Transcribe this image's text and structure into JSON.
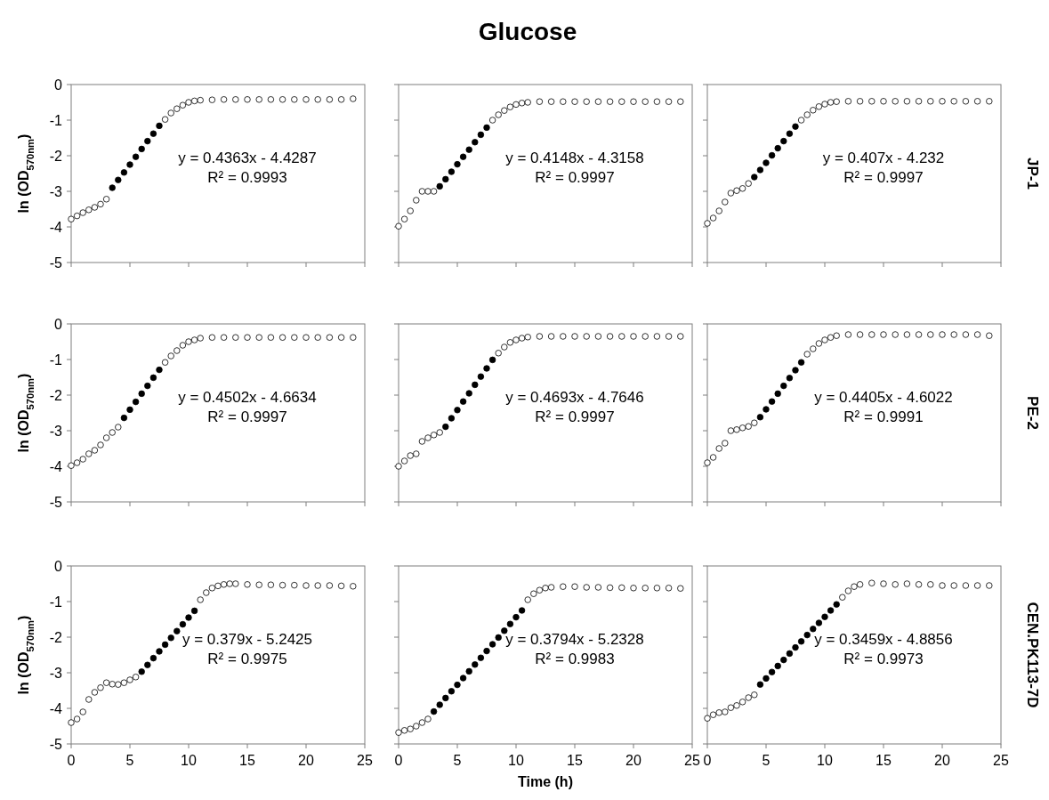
{
  "chart_data": [
    {
      "type": "scatter",
      "ylabel": "ln (OD$_{570nm}$)",
      "xlim": [
        0,
        25
      ],
      "xticks": [
        0,
        5,
        10,
        15,
        20,
        25
      ],
      "ylim": [
        -5,
        0
      ],
      "yticks": [
        0,
        -1,
        -2,
        -3,
        -4,
        -5
      ],
      "tick_labels": "y",
      "marker": "circle",
      "annotations": [
        "y = 0.4363x - 4.4287",
        "R² = 0.9993"
      ],
      "series": [
        {
          "color": "#ffffff",
          "x": [
            0,
            0.5,
            1,
            1.5,
            2,
            2.5,
            3,
            8,
            8.5,
            9,
            9.5,
            10,
            10.5,
            11,
            12,
            13,
            14,
            15,
            16,
            17,
            18,
            19,
            20,
            21,
            22,
            23,
            24
          ],
          "values": [
            -3.78,
            -3.69,
            -3.6,
            -3.52,
            -3.45,
            -3.36,
            -3.22,
            -0.98,
            -0.8,
            -0.68,
            -0.58,
            -0.5,
            -0.46,
            -0.44,
            -0.43,
            -0.42,
            -0.42,
            -0.42,
            -0.42,
            -0.42,
            -0.42,
            -0.42,
            -0.42,
            -0.42,
            -0.42,
            -0.42,
            -0.4
          ]
        },
        {
          "color": "#000000",
          "x": [
            3.5,
            4,
            4.5,
            5,
            5.5,
            6,
            6.5,
            7,
            7.5
          ],
          "values": [
            -2.9,
            -2.68,
            -2.47,
            -2.25,
            -2.03,
            -1.81,
            -1.59,
            -1.38,
            -1.16
          ]
        }
      ]
    },
    {
      "type": "scatter",
      "title": "Glucose",
      "xlim": [
        0,
        25
      ],
      "xticks": [
        0,
        5,
        10,
        15,
        20,
        25
      ],
      "ylim": [
        -5,
        0
      ],
      "yticks": [
        0,
        -1,
        -2,
        -3,
        -4,
        -5
      ],
      "tick_labels": false,
      "marker": "circle",
      "annotations": [
        "y = 0.4148x - 4.3158",
        "R² = 0.9997"
      ],
      "series": [
        {
          "color": "#ffffff",
          "x": [
            0,
            0.5,
            1,
            1.5,
            2,
            2.5,
            3,
            8,
            8.5,
            9,
            9.5,
            10,
            10.5,
            11,
            12,
            13,
            14,
            15,
            16,
            17,
            18,
            19,
            20,
            21,
            22,
            23,
            24
          ],
          "values": [
            -3.98,
            -3.78,
            -3.55,
            -3.25,
            -3.0,
            -3.0,
            -3.0,
            -1.0,
            -0.85,
            -0.73,
            -0.63,
            -0.56,
            -0.52,
            -0.5,
            -0.48,
            -0.48,
            -0.48,
            -0.48,
            -0.48,
            -0.48,
            -0.48,
            -0.48,
            -0.48,
            -0.48,
            -0.48,
            -0.48,
            -0.48
          ]
        },
        {
          "color": "#000000",
          "x": [
            3.5,
            4,
            4.5,
            5,
            5.5,
            6,
            6.5,
            7,
            7.5
          ],
          "values": [
            -2.86,
            -2.66,
            -2.45,
            -2.24,
            -2.03,
            -1.83,
            -1.62,
            -1.41,
            -1.21
          ]
        }
      ]
    },
    {
      "type": "scatter",
      "xlim": [
        0,
        25
      ],
      "xticks": [
        0,
        5,
        10,
        15,
        20,
        25
      ],
      "ylim": [
        -5,
        0
      ],
      "yticks": [
        0,
        -1,
        -2,
        -3,
        -4,
        -5
      ],
      "tick_labels": false,
      "marker": "circle",
      "annotations": [
        "y = 0.407x - 4.232",
        "R² = 0.9997",
        "JP-1"
      ],
      "series": [
        {
          "color": "#ffffff",
          "x": [
            0,
            0.5,
            1,
            1.5,
            2,
            2.5,
            3,
            3.5,
            8,
            8.5,
            9,
            9.5,
            10,
            10.5,
            11,
            12,
            13,
            14,
            15,
            16,
            17,
            18,
            19,
            20,
            21,
            22,
            23,
            24
          ],
          "values": [
            -3.9,
            -3.75,
            -3.55,
            -3.3,
            -3.05,
            -2.98,
            -2.92,
            -2.78,
            -1.0,
            -0.85,
            -0.72,
            -0.62,
            -0.55,
            -0.5,
            -0.48,
            -0.47,
            -0.47,
            -0.47,
            -0.47,
            -0.47,
            -0.47,
            -0.47,
            -0.47,
            -0.47,
            -0.47,
            -0.47,
            -0.47,
            -0.47
          ]
        },
        {
          "color": "#000000",
          "x": [
            4,
            4.5,
            5,
            5.5,
            6,
            6.5,
            7,
            7.5
          ],
          "values": [
            -2.6,
            -2.4,
            -2.2,
            -1.99,
            -1.79,
            -1.59,
            -1.38,
            -1.18
          ]
        }
      ]
    },
    {
      "type": "scatter",
      "ylabel": "ln (OD$_{570nm}$)",
      "xlim": [
        0,
        25
      ],
      "xticks": [
        0,
        5,
        10,
        15,
        20,
        25
      ],
      "ylim": [
        -5,
        0
      ],
      "yticks": [
        0,
        -1,
        -2,
        -3,
        -4,
        -5
      ],
      "tick_labels": "y",
      "marker": "circle",
      "annotations": [
        "y = 0.4502x - 4.6634",
        "R² = 0.9997"
      ],
      "series": [
        {
          "color": "#ffffff",
          "x": [
            0,
            0.5,
            1,
            1.5,
            2,
            2.5,
            3,
            3.5,
            4,
            8,
            8.5,
            9,
            9.5,
            10,
            10.5,
            11,
            12,
            13,
            14,
            15,
            16,
            17,
            18,
            19,
            20,
            21,
            22,
            23,
            24
          ],
          "values": [
            -3.98,
            -3.9,
            -3.8,
            -3.65,
            -3.55,
            -3.4,
            -3.2,
            -3.05,
            -2.9,
            -1.08,
            -0.9,
            -0.75,
            -0.6,
            -0.5,
            -0.45,
            -0.4,
            -0.38,
            -0.38,
            -0.38,
            -0.38,
            -0.38,
            -0.38,
            -0.38,
            -0.38,
            -0.38,
            -0.38,
            -0.38,
            -0.38,
            -0.38
          ]
        },
        {
          "color": "#000000",
          "x": [
            4.5,
            5,
            5.5,
            6,
            6.5,
            7,
            7.5
          ],
          "values": [
            -2.64,
            -2.41,
            -2.19,
            -1.96,
            -1.74,
            -1.51,
            -1.29
          ]
        }
      ]
    },
    {
      "type": "scatter",
      "xlim": [
        0,
        25
      ],
      "xticks": [
        0,
        5,
        10,
        15,
        20,
        25
      ],
      "ylim": [
        -5,
        0
      ],
      "yticks": [
        0,
        -1,
        -2,
        -3,
        -4,
        -5
      ],
      "tick_labels": false,
      "marker": "circle",
      "annotations": [
        "y = 0.4693x - 4.7646",
        "R² = 0.9997"
      ],
      "series": [
        {
          "color": "#ffffff",
          "x": [
            0,
            0.5,
            1,
            1.5,
            2,
            2.5,
            3,
            3.5,
            8.5,
            9,
            9.5,
            10,
            10.5,
            11,
            12,
            13,
            14,
            15,
            16,
            17,
            18,
            19,
            20,
            21,
            22,
            23,
            24
          ],
          "values": [
            -4.0,
            -3.85,
            -3.7,
            -3.65,
            -3.3,
            -3.2,
            -3.12,
            -3.05,
            -0.82,
            -0.65,
            -0.52,
            -0.45,
            -0.4,
            -0.37,
            -0.35,
            -0.35,
            -0.35,
            -0.35,
            -0.35,
            -0.35,
            -0.35,
            -0.35,
            -0.35,
            -0.35,
            -0.35,
            -0.35,
            -0.35
          ]
        },
        {
          "color": "#000000",
          "x": [
            4,
            4.5,
            5,
            5.5,
            6,
            6.5,
            7,
            7.5,
            8
          ],
          "values": [
            -2.89,
            -2.65,
            -2.42,
            -2.18,
            -1.95,
            -1.71,
            -1.48,
            -1.25,
            -1.01
          ]
        }
      ]
    },
    {
      "type": "scatter",
      "xlim": [
        0,
        25
      ],
      "xticks": [
        0,
        5,
        10,
        15,
        20,
        25
      ],
      "ylim": [
        -5,
        0
      ],
      "yticks": [
        0,
        -1,
        -2,
        -3,
        -4,
        -5
      ],
      "tick_labels": false,
      "marker": "circle",
      "annotations": [
        "y = 0.4405x - 4.6022",
        "R² = 0.9991",
        "PE-2"
      ],
      "series": [
        {
          "color": "#ffffff",
          "x": [
            0,
            0.5,
            1,
            1.5,
            2,
            2.5,
            3,
            3.5,
            4,
            8.5,
            9,
            9.5,
            10,
            10.5,
            11,
            12,
            13,
            14,
            15,
            16,
            17,
            18,
            19,
            20,
            21,
            22,
            23,
            24
          ],
          "values": [
            -3.9,
            -3.75,
            -3.5,
            -3.35,
            -3.0,
            -2.97,
            -2.92,
            -2.88,
            -2.78,
            -0.85,
            -0.7,
            -0.55,
            -0.45,
            -0.38,
            -0.33,
            -0.3,
            -0.3,
            -0.3,
            -0.3,
            -0.3,
            -0.3,
            -0.3,
            -0.3,
            -0.3,
            -0.3,
            -0.3,
            -0.3,
            -0.33
          ]
        },
        {
          "color": "#000000",
          "x": [
            4.5,
            5,
            5.5,
            6,
            6.5,
            7,
            7.5,
            8
          ],
          "values": [
            -2.62,
            -2.4,
            -2.18,
            -1.96,
            -1.74,
            -1.52,
            -1.3,
            -1.08
          ]
        }
      ]
    },
    {
      "type": "scatter",
      "ylabel": "ln (OD$_{570nm}$)",
      "xlim": [
        0,
        25
      ],
      "xticks": [
        0,
        5,
        10,
        15,
        20,
        25
      ],
      "ylim": [
        -5,
        0
      ],
      "yticks": [
        0,
        -1,
        -2,
        -3,
        -4,
        -5
      ],
      "marker": "circle",
      "annotations": [
        "y = 0.379x - 5.2425",
        "R² = 0.9975"
      ],
      "series": [
        {
          "color": "#ffffff",
          "x": [
            0,
            0.5,
            1,
            1.5,
            2,
            2.5,
            3,
            3.5,
            4,
            4.5,
            5,
            5.5,
            11,
            11.5,
            12,
            12.5,
            13,
            13.5,
            14,
            15,
            16,
            17,
            18,
            19,
            20,
            21,
            22,
            23,
            24
          ],
          "values": [
            -4.4,
            -4.3,
            -4.1,
            -3.75,
            -3.55,
            -3.42,
            -3.28,
            -3.32,
            -3.33,
            -3.28,
            -3.2,
            -3.12,
            -0.95,
            -0.75,
            -0.62,
            -0.56,
            -0.52,
            -0.5,
            -0.5,
            -0.52,
            -0.53,
            -0.53,
            -0.54,
            -0.54,
            -0.55,
            -0.55,
            -0.55,
            -0.56,
            -0.57
          ]
        },
        {
          "color": "#000000",
          "x": [
            6,
            6.5,
            7,
            7.5,
            8,
            8.5,
            9,
            9.5,
            10,
            10.5
          ],
          "values": [
            -2.97,
            -2.78,
            -2.59,
            -2.4,
            -2.21,
            -2.02,
            -1.83,
            -1.64,
            -1.45,
            -1.26
          ]
        }
      ]
    },
    {
      "type": "scatter",
      "xlabel": "Time (h)",
      "xlim": [
        0,
        25
      ],
      "xticks": [
        0,
        5,
        10,
        15,
        20,
        25
      ],
      "ylim": [
        -5,
        0
      ],
      "yticks": [
        0,
        -1,
        -2,
        -3,
        -4,
        -5
      ],
      "tick_labels": "x",
      "marker": "circle",
      "annotations": [
        "y = 0.3794x - 5.2328",
        "R² = 0.9983"
      ],
      "series": [
        {
          "color": "#ffffff",
          "x": [
            0,
            0.5,
            1,
            1.5,
            2,
            2.5,
            11,
            11.5,
            12,
            12.5,
            13,
            14,
            15,
            16,
            17,
            18,
            19,
            20,
            21,
            22,
            23,
            24
          ],
          "values": [
            -4.68,
            -4.62,
            -4.58,
            -4.5,
            -4.4,
            -4.3,
            -0.95,
            -0.78,
            -0.68,
            -0.62,
            -0.6,
            -0.58,
            -0.58,
            -0.6,
            -0.6,
            -0.61,
            -0.61,
            -0.62,
            -0.62,
            -0.62,
            -0.62,
            -0.63
          ]
        },
        {
          "color": "#000000",
          "x": [
            3,
            3.5,
            4,
            4.5,
            5,
            5.5,
            6,
            6.5,
            7,
            7.5,
            8,
            8.5,
            9,
            9.5,
            10,
            10.5
          ],
          "values": [
            -4.09,
            -3.9,
            -3.71,
            -3.52,
            -3.34,
            -3.15,
            -2.96,
            -2.77,
            -2.58,
            -2.39,
            -2.2,
            -2.01,
            -1.82,
            -1.63,
            -1.44,
            -1.25
          ]
        }
      ]
    },
    {
      "type": "scatter",
      "xlim": [
        0,
        25
      ],
      "xticks": [
        0,
        5,
        10,
        15,
        20,
        25
      ],
      "ylim": [
        -5,
        0
      ],
      "yticks": [
        0,
        -1,
        -2,
        -3,
        -4,
        -5
      ],
      "tick_labels": "x",
      "marker": "circle",
      "annotations": [
        "y = 0.3459x - 4.8856",
        "R² = 0.9973",
        "CEN.PK113-7D"
      ],
      "series": [
        {
          "color": "#ffffff",
          "x": [
            0,
            0.5,
            1,
            1.5,
            2,
            2.5,
            3,
            3.5,
            4,
            11.5,
            12,
            12.5,
            13,
            14,
            15,
            16,
            17,
            18,
            19,
            20,
            21,
            22,
            23,
            24
          ],
          "values": [
            -4.28,
            -4.18,
            -4.12,
            -4.1,
            -3.98,
            -3.92,
            -3.82,
            -3.7,
            -3.62,
            -0.88,
            -0.7,
            -0.58,
            -0.52,
            -0.48,
            -0.5,
            -0.52,
            -0.5,
            -0.52,
            -0.52,
            -0.55,
            -0.55,
            -0.55,
            -0.55,
            -0.55
          ]
        },
        {
          "color": "#000000",
          "x": [
            4.5,
            5,
            5.5,
            6,
            6.5,
            7,
            7.5,
            8,
            8.5,
            9,
            9.5,
            10,
            10.5,
            11
          ],
          "values": [
            -3.33,
            -3.16,
            -2.98,
            -2.81,
            -2.64,
            -2.46,
            -2.29,
            -2.12,
            -1.94,
            -1.77,
            -1.6,
            -1.43,
            -1.25,
            -1.08
          ]
        }
      ]
    }
  ]
}
